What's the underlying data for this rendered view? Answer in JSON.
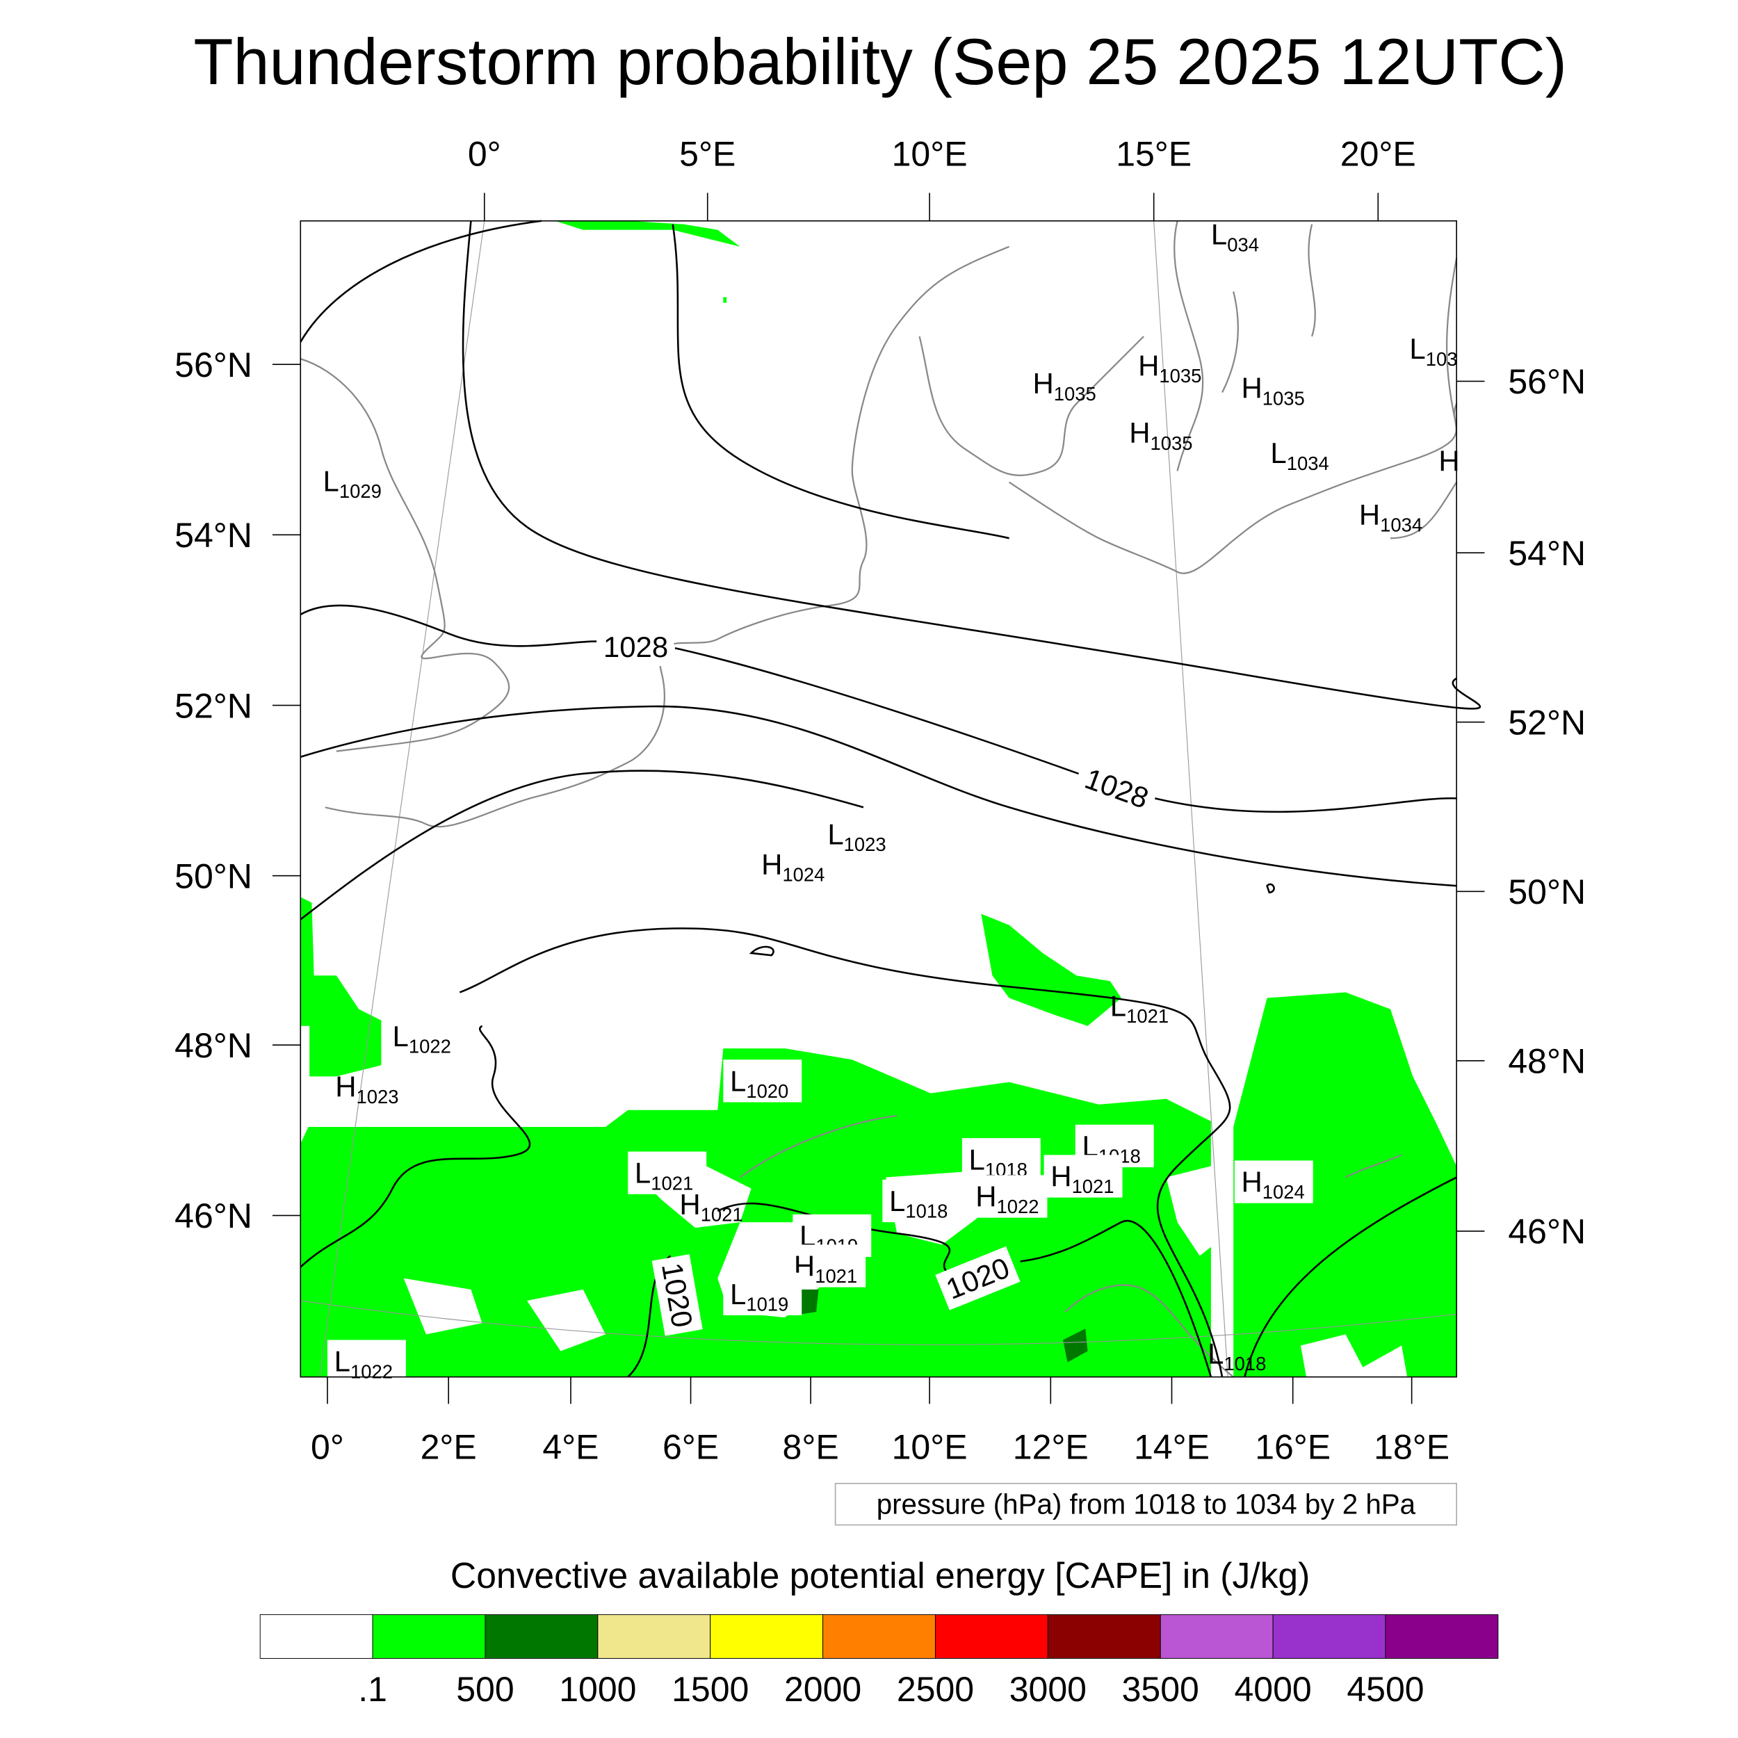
{
  "title": "Thunderstorm probability (Sep 25 2025 12UTC)",
  "top_lon_labels": [
    "0°",
    "5°E",
    "10°E",
    "15°E",
    "20°E"
  ],
  "bottom_lon_labels": [
    "0°",
    "2°E",
    "4°E",
    "6°E",
    "8°E",
    "10°E",
    "12°E",
    "14°E",
    "16°E",
    "18°E"
  ],
  "left_lat_labels": [
    "56°N",
    "54°N",
    "52°N",
    "50°N",
    "48°N",
    "46°N"
  ],
  "right_lat_labels": [
    "56°N",
    "54°N",
    "52°N",
    "50°N",
    "48°N",
    "46°N"
  ],
  "contour_info": "pressure (hPa) from 1018 to 1034 by 2 hPa",
  "contour_labels": [
    "1028",
    "1028",
    "1020",
    "1020"
  ],
  "pressure_centers": [
    {
      "type": "L",
      "value": "034"
    },
    {
      "type": "H",
      "value": "1035"
    },
    {
      "type": "H",
      "value": "1035"
    },
    {
      "type": "H",
      "value": "1035"
    },
    {
      "type": "H",
      "value": "1035"
    },
    {
      "type": "L",
      "value": "1034"
    },
    {
      "type": "H",
      "value": "1034"
    },
    {
      "type": "L",
      "value": "103"
    },
    {
      "type": "H",
      "value": ""
    },
    {
      "type": "L",
      "value": "1029"
    },
    {
      "type": "L",
      "value": "1023"
    },
    {
      "type": "H",
      "value": "1024"
    },
    {
      "type": "L",
      "value": "1021"
    },
    {
      "type": "L",
      "value": "1022"
    },
    {
      "type": "H",
      "value": "1023"
    },
    {
      "type": "L",
      "value": "1020"
    },
    {
      "type": "L",
      "value": "1021"
    },
    {
      "type": "H",
      "value": "1021"
    },
    {
      "type": "L",
      "value": "1018"
    },
    {
      "type": "L",
      "value": "1018"
    },
    {
      "type": "H",
      "value": "1021"
    },
    {
      "type": "L",
      "value": "1018"
    },
    {
      "type": "H",
      "value": "1022"
    },
    {
      "type": "L",
      "value": "1019"
    },
    {
      "type": "H",
      "value": "1021"
    },
    {
      "type": "L",
      "value": "1019"
    },
    {
      "type": "H",
      "value": "1024"
    },
    {
      "type": "L",
      "value": "1022"
    },
    {
      "type": "L",
      "value": "1018"
    }
  ],
  "colorbar": {
    "title": "Convective available potential energy [CAPE] in (J/kg)",
    "colors": [
      "#ffffff",
      "#00ff00",
      "#007800",
      "#f0e68c",
      "#ffff00",
      "#ff8000",
      "#ff0000",
      "#8b0000",
      "#ba55d3",
      "#9932cc",
      "#8b008b"
    ],
    "labels": [
      ".1",
      "500",
      "1000",
      "1500",
      "2000",
      "2500",
      "3000",
      "3500",
      "4000",
      "4500"
    ]
  }
}
